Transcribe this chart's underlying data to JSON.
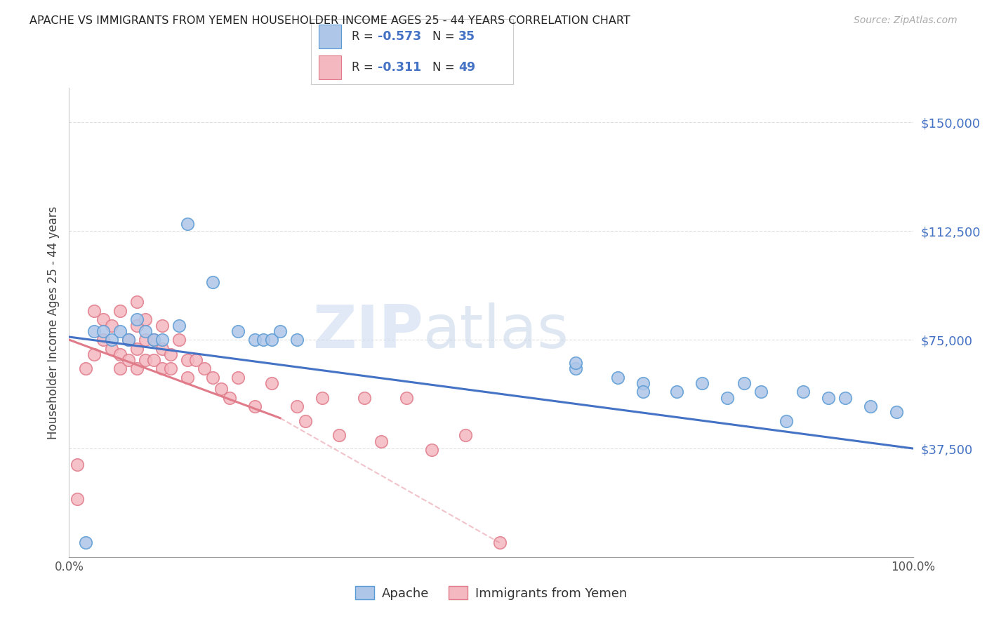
{
  "title": "APACHE VS IMMIGRANTS FROM YEMEN HOUSEHOLDER INCOME AGES 25 - 44 YEARS CORRELATION CHART",
  "source": "Source: ZipAtlas.com",
  "ylabel": "Householder Income Ages 25 - 44 years",
  "yticks": [
    37500,
    75000,
    112500,
    150000
  ],
  "ytick_labels": [
    "$37,500",
    "$75,000",
    "$112,500",
    "$150,000"
  ],
  "xlim": [
    0,
    100
  ],
  "ylim": [
    0,
    162000
  ],
  "watermark_zip": "ZIP",
  "watermark_atlas": "atlas",
  "apache_color": "#aec6e8",
  "apache_edge_color": "#5b9bd5",
  "yemen_color": "#f4b8c1",
  "yemen_edge_color": "#e07b8a",
  "apache_line_color": "#4472c4",
  "yemen_line_color": "#e07b8a",
  "grid_color": "#e0e0e0",
  "title_color": "#222222",
  "right_label_color": "#4472c4",
  "apache_scatter_x": [
    2,
    3,
    4,
    5,
    6,
    7,
    8,
    9,
    10,
    11,
    13,
    14,
    17,
    20,
    22,
    23,
    24,
    25,
    27,
    60,
    65,
    68,
    72,
    75,
    78,
    80,
    82,
    85,
    87,
    90,
    92,
    95,
    98,
    60,
    68
  ],
  "apache_scatter_y": [
    5000,
    78000,
    78000,
    75000,
    78000,
    75000,
    82000,
    78000,
    75000,
    75000,
    80000,
    115000,
    95000,
    78000,
    75000,
    75000,
    75000,
    78000,
    75000,
    65000,
    62000,
    60000,
    57000,
    60000,
    55000,
    60000,
    57000,
    47000,
    57000,
    55000,
    55000,
    52000,
    50000,
    67000,
    57000
  ],
  "yemen_scatter_x": [
    1,
    2,
    3,
    4,
    4,
    5,
    5,
    6,
    6,
    7,
    7,
    8,
    8,
    8,
    9,
    9,
    10,
    10,
    11,
    11,
    11,
    12,
    12,
    13,
    14,
    14,
    15,
    16,
    17,
    18,
    19,
    20,
    22,
    24,
    27,
    28,
    30,
    32,
    35,
    37,
    40,
    43,
    47,
    51,
    1,
    3,
    6,
    8,
    9
  ],
  "yemen_scatter_y": [
    20000,
    65000,
    70000,
    75000,
    82000,
    80000,
    72000,
    70000,
    65000,
    75000,
    68000,
    80000,
    72000,
    65000,
    75000,
    68000,
    75000,
    68000,
    80000,
    72000,
    65000,
    70000,
    65000,
    75000,
    68000,
    62000,
    68000,
    65000,
    62000,
    58000,
    55000,
    62000,
    52000,
    60000,
    52000,
    47000,
    55000,
    42000,
    55000,
    40000,
    55000,
    37000,
    42000,
    5000,
    32000,
    85000,
    85000,
    88000,
    82000
  ]
}
